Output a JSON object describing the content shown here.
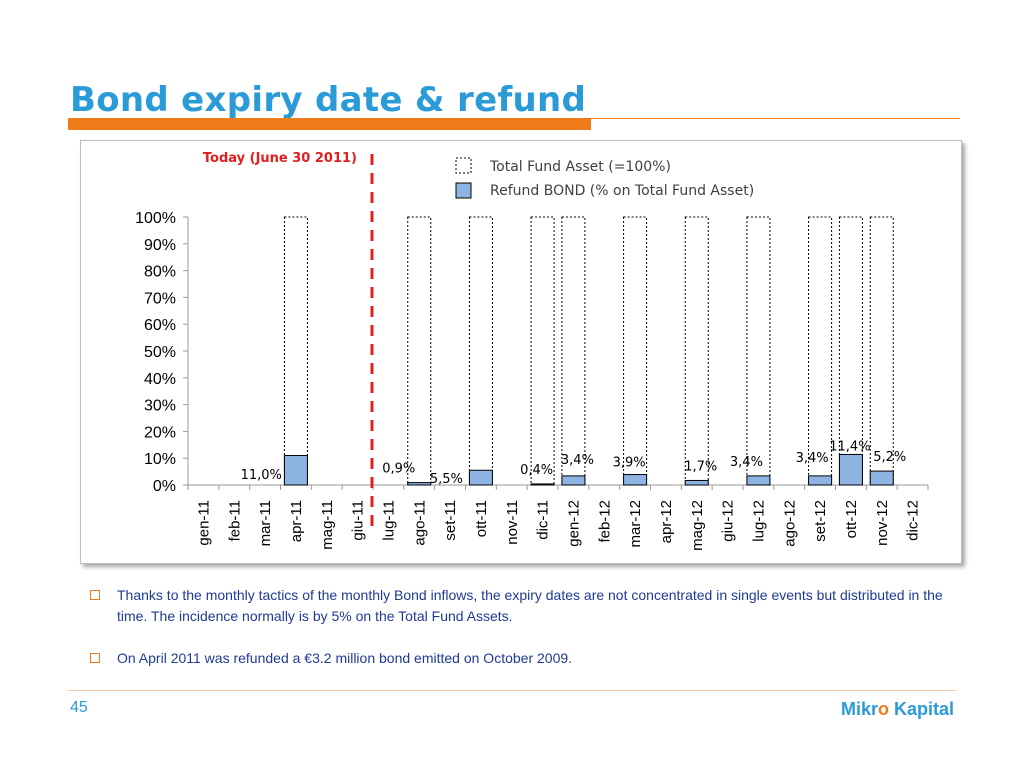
{
  "slide": {
    "title": "Bond expiry date & refund",
    "page_number": "45",
    "logo_part1": "Mikr",
    "logo_o": "o",
    "logo_part2": "Kapital"
  },
  "bullets": [
    "Thanks to the monthly tactics of the monthly Bond inflows, the expiry dates are not concentrated in single events but distributed in the time. The incidence normally is by 5% on  the Total Fund  Assets.",
    "On April 2011 was refunded a €3.2 million bond emitted on October 2009."
  ],
  "colors": {
    "title": "#2B9BD8",
    "accent": "#F07B1B",
    "refund_fill": "#8DB4E2",
    "today_line": "#E02020",
    "bullet_text": "#1F3A93"
  },
  "chart_data": {
    "type": "bar",
    "categories": [
      "gen-11",
      "feb-11",
      "mar-11",
      "apr-11",
      "mag-11",
      "giu-11",
      "lug-11",
      "ago-11",
      "set-11",
      "ott-11",
      "nov-11",
      "dic-11",
      "gen-12",
      "feb-12",
      "mar-12",
      "apr-12",
      "mag-12",
      "giu-12",
      "lug-12",
      "ago-12",
      "set-12",
      "ott-12",
      "nov-12",
      "dic-12"
    ],
    "series": [
      {
        "name": "Total Fund Asset (=100%)",
        "values": [
          null,
          null,
          null,
          100,
          null,
          null,
          null,
          100,
          null,
          100,
          null,
          100,
          100,
          null,
          100,
          null,
          100,
          null,
          100,
          null,
          100,
          100,
          100,
          null
        ]
      },
      {
        "name": "Refund  BOND (% on Total Fund Asset)",
        "values": [
          null,
          null,
          null,
          11.0,
          null,
          null,
          null,
          0.9,
          null,
          5.5,
          null,
          0.4,
          3.4,
          null,
          3.9,
          null,
          1.7,
          null,
          3.4,
          null,
          3.4,
          11.4,
          5.2,
          null
        ]
      }
    ],
    "data_labels": [
      {
        "category": "apr-11",
        "text": "11,0%"
      },
      {
        "category": "ago-11",
        "text": "0,9%"
      },
      {
        "category": "ott-11",
        "text": "5,5%"
      },
      {
        "category": "dic-11",
        "text": "0,4%"
      },
      {
        "category": "gen-12",
        "text": "3,4%"
      },
      {
        "category": "mar-12",
        "text": "3,9%"
      },
      {
        "category": "mag-12",
        "text": "1,7%"
      },
      {
        "category": "lug-12",
        "text": "3,4%"
      },
      {
        "category": "set-12",
        "text": "3,4%"
      },
      {
        "category": "ott-12",
        "text": "11,4%"
      },
      {
        "category": "nov-12",
        "text": "5,2%"
      }
    ],
    "y_ticks": [
      "0%",
      "10%",
      "20%",
      "30%",
      "40%",
      "50%",
      "60%",
      "70%",
      "80%",
      "90%",
      "100%"
    ],
    "ylim": [
      0,
      100
    ],
    "today_marker": {
      "label": "Today  (June 30 2011)"
    },
    "legend_position": "top-right"
  }
}
